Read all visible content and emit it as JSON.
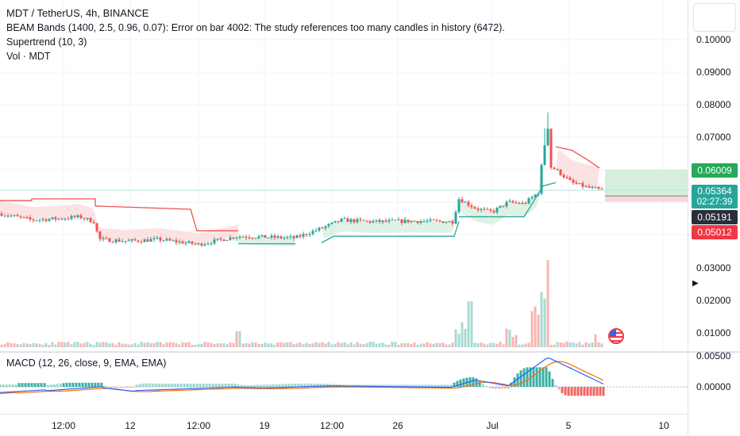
{
  "header": {
    "symbol_line": "MDT / TetherUS, 4h, BINANCE",
    "indicators": [
      "BEAM Bands (1400, 2.5, 0.96, 0.07): Error on bar 4002: The study references too many candles in history (6472).",
      "Supertrend (10, 3)",
      "Vol · MDT"
    ]
  },
  "macd": {
    "label": "MACD (12, 26, close, 9, EMA, EMA)"
  },
  "price_axis": {
    "labels": [
      "0.10000",
      "0.09000",
      "0.08000",
      "0.07000",
      "0.03000",
      "0.02000",
      "0.01000"
    ],
    "macd_labels": [
      "0.00500",
      "0.00000"
    ],
    "tags": {
      "tp": "0.06009",
      "current": "0.05364",
      "countdown": "02:27:39",
      "entry": "0.05191",
      "sl": "0.05012"
    }
  },
  "time_axis": {
    "labels": [
      "12:00",
      "12",
      "12:00",
      "19",
      "12:00",
      "26",
      "Jul",
      "5",
      "10"
    ]
  },
  "colors": {
    "up": "#26a69a",
    "down": "#ef5350",
    "up_fill": "#d8eedf",
    "down_fill": "#fbdcdc",
    "green_tag": "#22ab58",
    "teal_tag": "#26a69a",
    "dark_tag": "#2a2e39",
    "red_tag": "#f23645",
    "macd_line": "#2962ff",
    "signal_line": "#ff6d00"
  },
  "icons": {
    "flag": "us-flag-icon",
    "arrow": "chevron-right-icon"
  }
}
